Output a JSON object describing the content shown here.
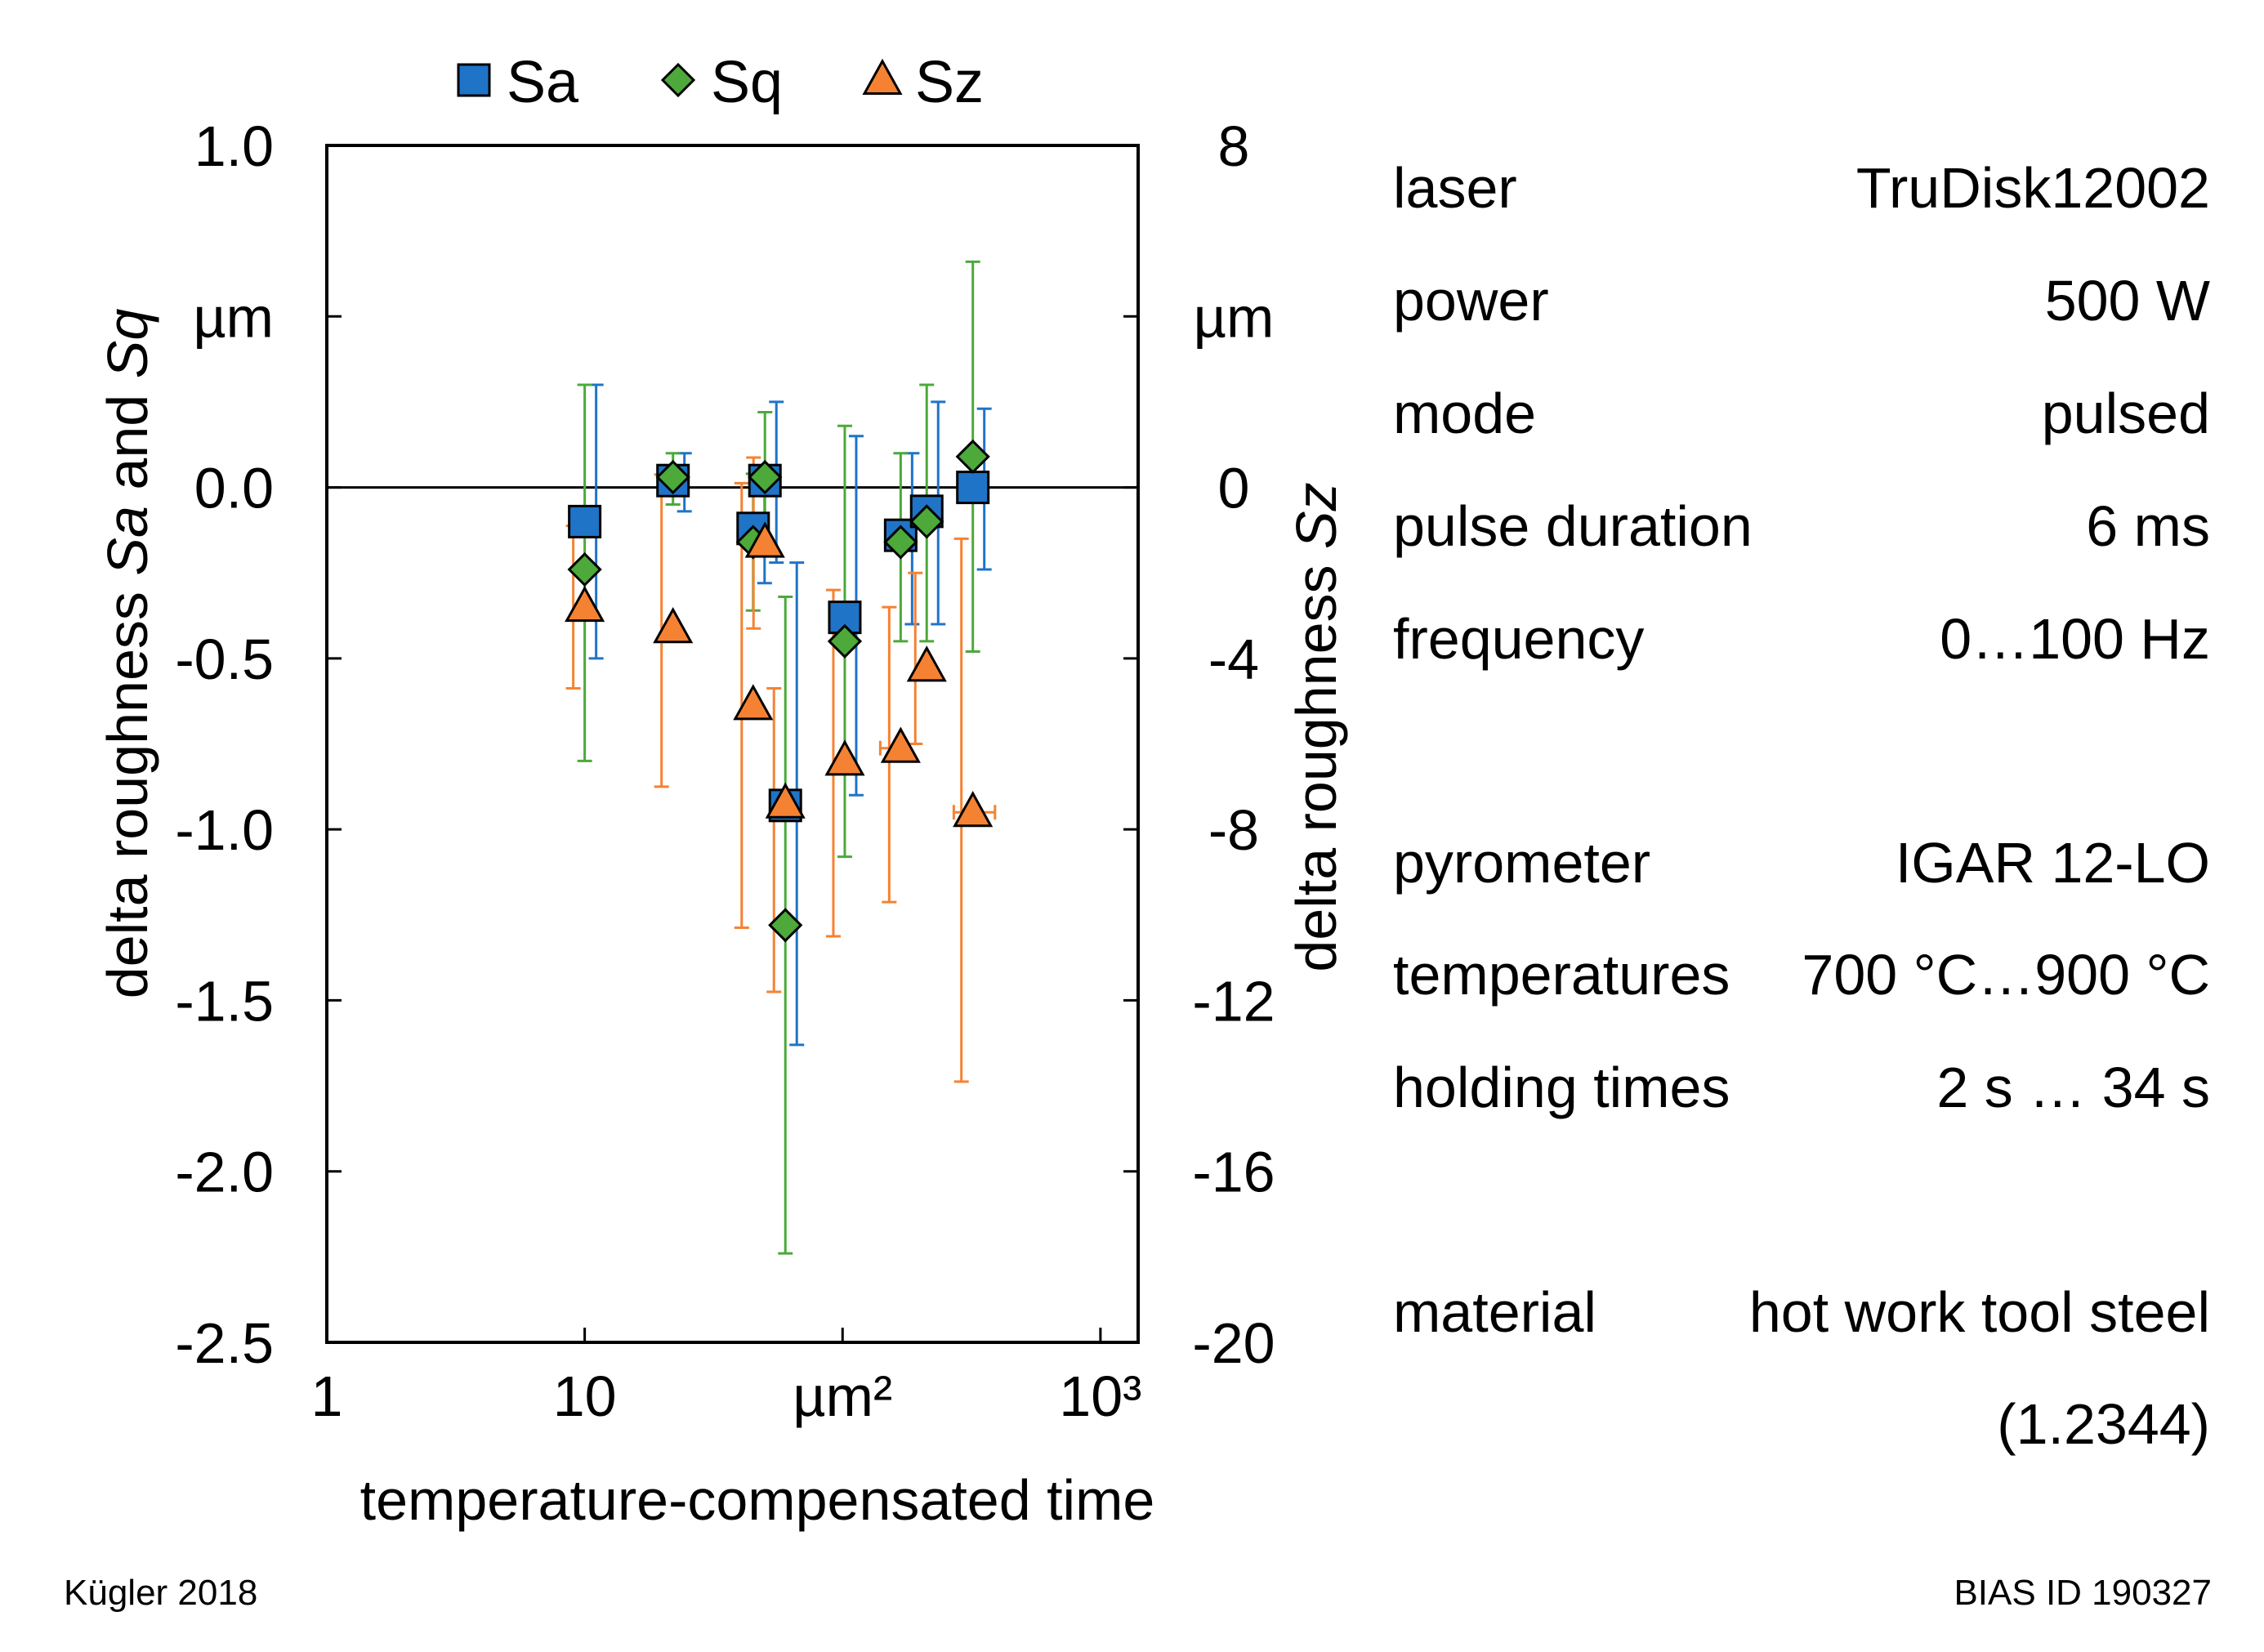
{
  "chart_data": {
    "type": "scatter",
    "title": "",
    "legend": {
      "placement": "top",
      "entries": [
        {
          "name": "Sa",
          "marker": "square",
          "color": "#1f74c8"
        },
        {
          "name": "Sq",
          "marker": "diamond",
          "color": "#4ca93a"
        },
        {
          "name": "Sz",
          "marker": "triangle",
          "color": "#f58233"
        }
      ]
    },
    "x_axis": {
      "label": "temperature-compensated time",
      "scale": "log",
      "range": [
        1,
        1400
      ],
      "ticks": [
        {
          "value": 1,
          "label": "1"
        },
        {
          "value": 10,
          "label": "10"
        },
        {
          "value": 100,
          "label": "µm²"
        },
        {
          "value": 1000,
          "label": "10³"
        }
      ]
    },
    "y_left": {
      "label": "delta roughness Sa and Sq",
      "unit": "µm",
      "range": [
        -2.5,
        1.0
      ],
      "ticks": [
        {
          "value": 1.0,
          "label": "1.0"
        },
        {
          "value": 0.5,
          "label": "µm"
        },
        {
          "value": 0.0,
          "label": "0.0"
        },
        {
          "value": -0.5,
          "label": "-0.5"
        },
        {
          "value": -1.0,
          "label": "-1.0"
        },
        {
          "value": -1.5,
          "label": "-1.5"
        },
        {
          "value": -2.0,
          "label": "-2.0"
        },
        {
          "value": -2.5,
          "label": "-2.5"
        }
      ]
    },
    "y_right": {
      "label": "delta roughness Sz",
      "unit": "µm",
      "range": [
        -20,
        8
      ],
      "ticks": [
        {
          "value": 8,
          "label": "8"
        },
        {
          "value": 4,
          "label": "µm"
        },
        {
          "value": 0,
          "label": "0"
        },
        {
          "value": -4,
          "label": "-4"
        },
        {
          "value": -8,
          "label": "-8"
        },
        {
          "value": -12,
          "label": "-12"
        },
        {
          "value": -16,
          "label": "-16"
        },
        {
          "value": -20,
          "label": "-20"
        }
      ]
    },
    "series": [
      {
        "name": "Sa",
        "axis": "left",
        "color": "#1f74c8",
        "points": [
          {
            "x": 10,
            "y": -0.1,
            "y_lo": -0.5,
            "y_hi": 0.3
          },
          {
            "x": 22,
            "y": 0.02,
            "y_lo": -0.07,
            "y_hi": 0.1
          },
          {
            "x": 45,
            "y": -0.12,
            "y_lo": -0.28,
            "y_hi": 0.06
          },
          {
            "x": 50,
            "y": 0.02,
            "y_lo": -0.22,
            "y_hi": 0.25
          },
          {
            "x": 60,
            "y": -0.93,
            "y_lo": -1.63,
            "y_hi": -0.22
          },
          {
            "x": 102,
            "y": -0.38,
            "y_lo": -0.9,
            "y_hi": 0.15
          },
          {
            "x": 168,
            "y": -0.14,
            "y_lo": -0.4,
            "y_hi": 0.1
          },
          {
            "x": 212,
            "y": -0.07,
            "y_lo": -0.4,
            "y_hi": 0.25,
            "x_lo": 195,
            "x_hi": 230
          },
          {
            "x": 320,
            "y": 0.0,
            "y_lo": -0.24,
            "y_hi": 0.23,
            "x_lo": 290,
            "x_hi": 355
          }
        ]
      },
      {
        "name": "Sq",
        "axis": "left",
        "color": "#4ca93a",
        "points": [
          {
            "x": 10,
            "y": -0.24,
            "y_lo": -0.8,
            "y_hi": 0.3
          },
          {
            "x": 22,
            "y": 0.03,
            "y_lo": -0.05,
            "y_hi": 0.1
          },
          {
            "x": 45,
            "y": -0.16,
            "y_lo": -0.36,
            "y_hi": 0.04
          },
          {
            "x": 50,
            "y": 0.03,
            "y_lo": -0.15,
            "y_hi": 0.22
          },
          {
            "x": 60,
            "y": -1.28,
            "y_lo": -2.24,
            "y_hi": -0.32
          },
          {
            "x": 102,
            "y": -0.45,
            "y_lo": -1.08,
            "y_hi": 0.18
          },
          {
            "x": 168,
            "y": -0.16,
            "y_lo": -0.45,
            "y_hi": 0.1
          },
          {
            "x": 212,
            "y": -0.1,
            "y_lo": -0.45,
            "y_hi": 0.3
          },
          {
            "x": 320,
            "y": 0.09,
            "y_lo": -0.48,
            "y_hi": 0.66
          }
        ]
      },
      {
        "name": "Sz",
        "axis": "right",
        "color": "#f58233",
        "points": [
          {
            "x": 10,
            "y": -2.8,
            "y_lo": -4.7,
            "y_hi": -0.9
          },
          {
            "x": 22,
            "y": -3.3,
            "y_lo": -7.0,
            "y_hi": 0.3
          },
          {
            "x": 45,
            "y": -5.1,
            "y_lo": -10.3,
            "y_hi": 0.1
          },
          {
            "x": 50,
            "y": -1.3,
            "y_lo": -3.3,
            "y_hi": 0.7
          },
          {
            "x": 60,
            "y": -7.4,
            "y_lo": -11.8,
            "y_hi": -4.7
          },
          {
            "x": 102,
            "y": -6.4,
            "y_lo": -10.5,
            "y_hi": -2.4
          },
          {
            "x": 168,
            "y": -6.1,
            "y_lo": -9.7,
            "y_hi": -2.8,
            "x_lo": 140,
            "x_hi": 175
          },
          {
            "x": 212,
            "y": -4.2,
            "y_lo": -6.0,
            "y_hi": -2.0
          },
          {
            "x": 320,
            "y": -7.6,
            "y_lo": -13.9,
            "y_hi": -1.2,
            "x_lo": 270,
            "x_hi": 390
          }
        ]
      }
    ],
    "reference_line": {
      "axis": "left",
      "y": 0.0
    }
  },
  "parameters": [
    {
      "label": "laser",
      "value": "TruDisk12002"
    },
    {
      "label": "power",
      "value": "500 W"
    },
    {
      "label": "mode",
      "value": "pulsed"
    },
    {
      "label": "pulse duration",
      "value": "6 ms"
    },
    {
      "label": "frequency",
      "value": "0…100 Hz"
    },
    {
      "label": "pyrometer",
      "value": "IGAR 12-LO"
    },
    {
      "label": "temperatures",
      "value": "700 °C…900 °C"
    },
    {
      "label": "holding times",
      "value": "2 s … 34 s"
    },
    {
      "label": "material",
      "value": "hot work tool steel"
    },
    {
      "label": "",
      "value": "(1.2344)"
    }
  ],
  "footer": {
    "author": "Kügler 2018",
    "id": "BIAS ID 190327"
  }
}
